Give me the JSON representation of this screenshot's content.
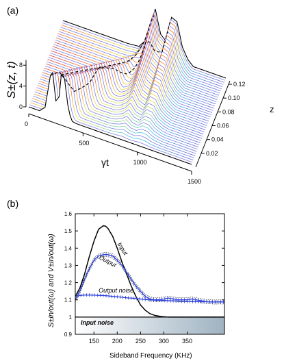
{
  "chart_data": [
    {
      "panel_label": "(a)",
      "type": "area",
      "style": "3d-waterfall",
      "xlabel": "γt",
      "ylabel": "S±(z, t)",
      "zlabel": "z",
      "xlim": [
        0,
        1500
      ],
      "ylim": [
        0,
        9
      ],
      "zlim": [
        0,
        0.125
      ],
      "x_ticks": [
        "0",
        "500",
        "1000",
        "1500"
      ],
      "y_ticks": [
        "0",
        "4",
        "8"
      ],
      "z_ticks": [
        "0.02",
        "0.04",
        "0.06",
        "0.08",
        "0.10",
        "0.12"
      ],
      "front_trace_z0": {
        "t": [
          0,
          100,
          150,
          200,
          220,
          250,
          280,
          300,
          330,
          360,
          380,
          400,
          420,
          440,
          460,
          480,
          520,
          600,
          800,
          1000,
          1200,
          1400,
          1500
        ],
        "values": [
          0,
          0,
          1,
          7.5,
          8.2,
          3,
          4,
          8.4,
          7.8,
          3,
          1.2,
          0.2,
          0.05,
          0.02,
          0.01,
          0,
          0,
          0,
          0,
          0,
          0,
          0,
          0
        ]
      },
      "back_trace_z012": {
        "t": [
          0,
          500,
          600,
          700,
          750,
          800,
          850,
          900,
          950,
          1000,
          1050,
          1100,
          1150,
          1200,
          1400,
          1500
        ],
        "values": [
          0,
          0,
          0,
          0.2,
          1.5,
          4,
          8.5,
          4,
          3,
          8,
          7.5,
          3,
          1,
          0,
          0,
          0
        ]
      }
    },
    {
      "panel_label": "(b)",
      "type": "line",
      "xlabel": "Sideband Frequency  (KHz)",
      "ylabel": "S±in/out(ω) and V±in/out(ω)",
      "xlim": [
        110,
        430
      ],
      "ylim": [
        0.9,
        1.6
      ],
      "x_ticks": [
        150,
        200,
        250,
        300,
        350
      ],
      "y_ticks": [
        0.9,
        1.0,
        1.1,
        1.2,
        1.3,
        1.4,
        1.5,
        1.6
      ],
      "x": [
        110,
        120,
        130,
        140,
        150,
        160,
        170,
        175,
        180,
        190,
        200,
        210,
        220,
        230,
        240,
        250,
        260,
        270,
        280,
        290,
        300,
        310,
        320,
        330,
        340,
        350,
        360,
        370,
        380,
        390,
        400,
        410,
        420,
        430
      ],
      "series": [
        {
          "name": "Input",
          "color": "#000000",
          "values": [
            1.12,
            1.17,
            1.25,
            1.35,
            1.44,
            1.51,
            1.53,
            1.528,
            1.515,
            1.47,
            1.4,
            1.32,
            1.25,
            1.18,
            1.12,
            1.07,
            1.04,
            1.02,
            1.01,
            1.005,
            1.002,
            1.0,
            1.0,
            1.0,
            1.0,
            1.0,
            1.0,
            1.0,
            1.0,
            1.0,
            1.0,
            1.0,
            1.0,
            1.0
          ]
        },
        {
          "name": "Output",
          "color": "#2b3fd6",
          "values": [
            1.1,
            1.15,
            1.22,
            1.28,
            1.33,
            1.355,
            1.362,
            1.363,
            1.362,
            1.355,
            1.33,
            1.3,
            1.26,
            1.22,
            1.18,
            1.15,
            1.12,
            1.105,
            1.1,
            1.1,
            1.105,
            1.11,
            1.105,
            1.1,
            1.1,
            1.1,
            1.105,
            1.1,
            1.095,
            1.09,
            1.088,
            1.087,
            1.088,
            1.087
          ]
        },
        {
          "name": "Output noise",
          "color": "#2b3fd6",
          "values": [
            1.12,
            1.125,
            1.128,
            1.128,
            1.127,
            1.126,
            1.125,
            1.124,
            1.123,
            1.12,
            1.118,
            1.115,
            1.112,
            1.11,
            1.108,
            1.105,
            1.102,
            1.1,
            1.098,
            1.097,
            1.096,
            1.095,
            1.094,
            1.093,
            1.092,
            1.091,
            1.09,
            1.09,
            1.089,
            1.089,
            1.088,
            1.088,
            1.088,
            1.088
          ]
        }
      ],
      "band": {
        "name": "Input noise",
        "from": 0.9,
        "to": 1.0,
        "colors": [
          "#ffffff",
          "#9fb3c2"
        ]
      }
    }
  ]
}
